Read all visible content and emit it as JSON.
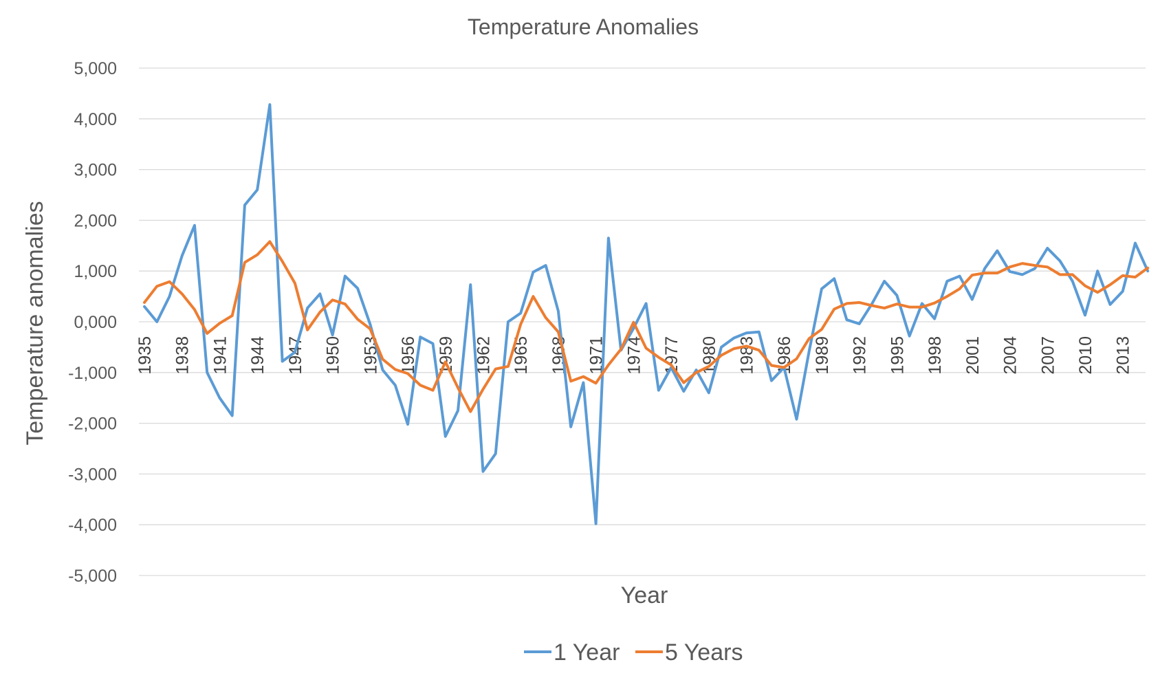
{
  "chart_data": {
    "type": "line",
    "title": "Temperature Anomalies",
    "xlabel": "Year",
    "ylabel": "Temperature anomalies",
    "ylim": [
      -5000,
      5000
    ],
    "yticks": [
      5000,
      4000,
      3000,
      2000,
      1000,
      0,
      -1000,
      -2000,
      -3000,
      -4000,
      -5000
    ],
    "ytick_labels": [
      "5,000",
      "4,000",
      "3,000",
      "2,000",
      "1,000",
      "0,000",
      "-1,000",
      "-2,000",
      "-3,000",
      "-4,000",
      "-5,000"
    ],
    "x_tick_labels": [
      "1935",
      "1938",
      "1941",
      "1944",
      "1947",
      "1950",
      "1953",
      "1956",
      "1959",
      "1962",
      "1965",
      "1968",
      "1971",
      "1974",
      "1977",
      "1980",
      "1983",
      "1986",
      "1989",
      "1992",
      "1995",
      "1998",
      "2001",
      "2004",
      "2007",
      "2010",
      "2013"
    ],
    "x": [
      1935,
      1936,
      1937,
      1938,
      1939,
      1940,
      1941,
      1942,
      1943,
      1944,
      1945,
      1946,
      1947,
      1948,
      1949,
      1950,
      1951,
      1952,
      1953,
      1954,
      1955,
      1956,
      1957,
      1958,
      1959,
      1960,
      1961,
      1962,
      1963,
      1964,
      1965,
      1966,
      1967,
      1968,
      1969,
      1970,
      1971,
      1972,
      1973,
      1974,
      1975,
      1976,
      1977,
      1978,
      1979,
      1980,
      1981,
      1982,
      1983,
      1984,
      1985,
      1986,
      1987,
      1988,
      1989,
      1990,
      1991,
      1992,
      1993,
      1994,
      1995,
      1996,
      1997,
      1998,
      1999,
      2000,
      2001,
      2002,
      2003,
      2004,
      2005,
      2006,
      2007,
      2008,
      2009,
      2010,
      2011,
      2012,
      2013,
      2014,
      2015
    ],
    "series": [
      {
        "name": "1 Year",
        "color": "#5b9bd5",
        "values": [
          300,
          0,
          500,
          1300,
          1900,
          -1000,
          -1500,
          -1850,
          2300,
          2600,
          4280,
          -780,
          -600,
          270,
          550,
          -260,
          900,
          660,
          -50,
          -950,
          -1250,
          -2020,
          -300,
          -430,
          -2260,
          -1750,
          730,
          -2950,
          -2600,
          0,
          170,
          980,
          1110,
          210,
          -2070,
          -1200,
          -3980,
          1650,
          -560,
          -130,
          360,
          -1350,
          -900,
          -1370,
          -950,
          -1400,
          -500,
          -320,
          -220,
          -200,
          -1160,
          -900,
          -1920,
          -580,
          650,
          850,
          40,
          -40,
          350,
          800,
          520,
          -280,
          360,
          60,
          800,
          900,
          440,
          1050,
          1400,
          990,
          930,
          1050,
          1450,
          1200,
          800,
          130,
          1000,
          340,
          600,
          1550,
          1000
        ]
      },
      {
        "name": "5 Years",
        "color": "#ed7d31",
        "values": [
          380,
          700,
          790,
          550,
          240,
          -230,
          -30,
          120,
          1170,
          1320,
          1580,
          1190,
          760,
          -160,
          190,
          430,
          350,
          50,
          -140,
          -740,
          -940,
          -1020,
          -1250,
          -1350,
          -790,
          -1300,
          -1770,
          -1330,
          -930,
          -880,
          -50,
          500,
          80,
          -200,
          -1170,
          -1080,
          -1210,
          -850,
          -540,
          -10,
          -520,
          -700,
          -850,
          -1200,
          -1000,
          -880,
          -660,
          -530,
          -480,
          -560,
          -860,
          -900,
          -730,
          -330,
          -150,
          250,
          360,
          380,
          320,
          270,
          350,
          290,
          290,
          370,
          500,
          650,
          920,
          960,
          960,
          1080,
          1150,
          1110,
          1080,
          930,
          930,
          710,
          580,
          730,
          910,
          880,
          1060
        ]
      }
    ],
    "legend_position": "bottom",
    "grid": true
  }
}
